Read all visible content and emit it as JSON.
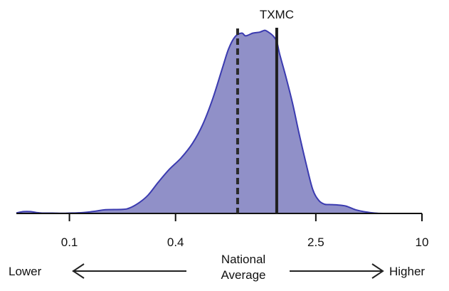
{
  "chart_data": {
    "type": "area",
    "title": "",
    "x_scale": "log",
    "xlim": [
      0.05,
      10
    ],
    "ylim": [
      0,
      1
    ],
    "ticks": [
      {
        "value": 0.1,
        "label": "0.1"
      },
      {
        "value": 0.4,
        "label": "0.4"
      },
      {
        "value": 2.5,
        "label": "2.5"
      },
      {
        "value": 10,
        "label": "10"
      }
    ],
    "density": {
      "x": [
        0.05,
        0.055,
        0.06,
        0.065,
        0.07,
        0.08,
        0.09,
        0.1,
        0.11,
        0.12,
        0.14,
        0.16,
        0.2,
        0.22,
        0.25,
        0.28,
        0.32,
        0.37,
        0.43,
        0.5,
        0.57,
        0.65,
        0.74,
        0.8,
        0.87,
        0.95,
        1.0,
        1.1,
        1.2,
        1.28,
        1.32,
        1.37,
        1.43,
        1.5,
        1.56,
        1.7,
        1.85,
        2.0,
        2.2,
        2.4,
        2.6,
        2.8,
        3.0,
        3.3,
        3.7,
        4.2,
        4.8,
        5.4,
        6.0,
        7.0,
        8.0,
        9.0,
        10.0
      ],
      "y": [
        0.003,
        0.01,
        0.01,
        0.005,
        0.002,
        0.002,
        0.001,
        0.002,
        0.003,
        0.005,
        0.012,
        0.02,
        0.022,
        0.03,
        0.06,
        0.1,
        0.17,
        0.24,
        0.3,
        0.38,
        0.48,
        0.62,
        0.79,
        0.89,
        0.955,
        0.975,
        0.96,
        0.975,
        0.98,
        0.99,
        0.985,
        0.975,
        0.96,
        0.93,
        0.86,
        0.73,
        0.59,
        0.44,
        0.27,
        0.13,
        0.07,
        0.05,
        0.048,
        0.046,
        0.04,
        0.02,
        0.008,
        0.002,
        0,
        0,
        0,
        0,
        0
      ]
    },
    "fill_color": "#9090c8",
    "line_color": "#3b3bb0",
    "national_average": {
      "value": 0.9,
      "label": "National Average",
      "style": "dashed"
    },
    "entity_marker": {
      "value": 1.5,
      "label": "TXMC",
      "style": "solid"
    },
    "lower_label": "Lower",
    "higher_label": "Higher"
  }
}
